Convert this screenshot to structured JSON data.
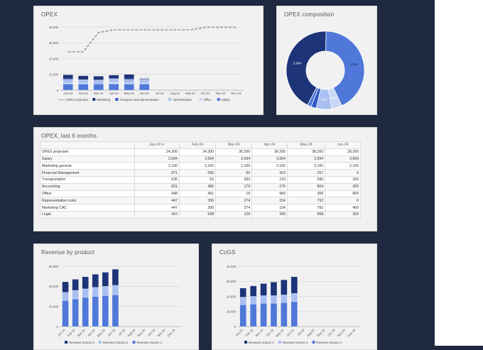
{
  "colors": {
    "background": "#1f2940",
    "card": "#f1f1f1",
    "dark_navy": "#1d3479",
    "royal_blue": "#2e57c4",
    "mid_blue": "#4f78d9",
    "light_blue": "#a9bff1",
    "pale_blue": "#c9d7f7",
    "projection": "#9a9a9a"
  },
  "cards": {
    "opex": {
      "title": "OPEX"
    },
    "composition": {
      "title": "OPEX composition"
    },
    "table": {
      "title": "OPEX, last 6 months"
    },
    "revenue": {
      "title": "Revenue by product"
    },
    "cogs": {
      "title": "CoGS"
    }
  },
  "chart_data": [
    {
      "id": "opex",
      "type": "bar",
      "title": "OPEX",
      "stacked": true,
      "categories": [
        "Jan-24",
        "Feb-24",
        "Mar-24",
        "Apr-24",
        "May-24",
        "Jun-24",
        "Jul-24",
        "Aug-24",
        "Sep-24",
        "Oct-24",
        "Nov-24",
        "Dec-24"
      ],
      "yticks": [
        "0",
        "10,000",
        "20,000",
        "30,000",
        "40,000"
      ],
      "ylim": [
        0,
        40000
      ],
      "grid": true,
      "legend_position": "bottom",
      "series": [
        {
          "name": "Salary",
          "kind": "bar",
          "values": [
            3994,
            3994,
            3994,
            3994,
            3994,
            3994,
            null,
            null,
            null,
            null,
            null,
            null
          ]
        },
        {
          "name": "Office",
          "kind": "bar",
          "values": [
            448,
            491,
            15,
            983,
            358,
            600,
            null,
            null,
            null,
            null,
            null,
            null
          ]
        },
        {
          "name": "Administrative",
          "kind": "bar",
          "values": [
            2100,
            2100,
            2100,
            2100,
            2100,
            2100,
            null,
            null,
            null,
            null,
            null,
            null
          ]
        },
        {
          "name": "Transport and representation",
          "kind": "bar",
          "values": [
            636,
            63,
            392,
            218,
            696,
            200,
            null,
            null,
            null,
            null,
            null,
            null
          ]
        },
        {
          "name": "Marketing",
          "kind": "bar",
          "values": [
            2547,
            2499,
            2374,
            2254,
            2892,
            500,
            null,
            null,
            null,
            null,
            null,
            null
          ]
        },
        {
          "name": "OPEX projected",
          "kind": "line",
          "dashed": true,
          "values": [
            24300,
            24300,
            36500,
            38200,
            38200,
            38200,
            38200,
            38200,
            38200,
            39800,
            39800,
            39800
          ]
        }
      ],
      "legend": [
        "OPEX projected",
        "Marketing",
        "Transport and representation",
        "Administrative",
        "Office",
        "Salary"
      ]
    },
    {
      "id": "composition",
      "type": "pie",
      "donut": true,
      "title": "OPEX composition",
      "slices": [
        {
          "label": "3,994",
          "value": 3994
        },
        {
          "label": "400",
          "value": 400
        },
        {
          "label": "600",
          "value": 600
        },
        {
          "label": "",
          "value": 200
        },
        {
          "label": "",
          "value": 150
        },
        {
          "label": "3,994",
          "value": 3994
        }
      ]
    },
    {
      "id": "table",
      "type": "table",
      "title": "OPEX, last 6 months",
      "columns": [
        "",
        "Jan-24",
        "Feb-24",
        "Mar-24",
        "Apr-24",
        "May-24",
        "Jun-24"
      ],
      "sort_marker": "▼",
      "rows": [
        [
          "OPEX projected",
          "24,300",
          "24,300",
          "36,500",
          "38,200",
          "38,200",
          "38,200"
        ],
        [
          "Salary",
          "3,994",
          "3,994",
          "3,994",
          "3,994",
          "3,994",
          "3,994"
        ],
        [
          "Marketing general",
          "2,100",
          "2,100",
          "2,100",
          "2,100",
          "2,100",
          "2,100"
        ],
        [
          "Financial Management",
          "871",
          "595",
          "50",
          "413",
          "157",
          "0"
        ],
        [
          "Transportation",
          "636",
          "63",
          "392",
          "218",
          "696",
          "200"
        ],
        [
          "Accounting",
          "601",
          "486",
          "179",
          "276",
          "804",
          "300"
        ],
        [
          "Office",
          "448",
          "491",
          "15",
          "983",
          "358",
          "600"
        ],
        [
          "Representative costs",
          "447",
          "399",
          "274",
          "154",
          "792",
          "0"
        ],
        [
          "Marketing CAC",
          "447",
          "399",
          "274",
          "154",
          "792",
          "400"
        ],
        [
          "Legal",
          "410",
          "638",
          "129",
          "300",
          "958",
          "300"
        ]
      ]
    },
    {
      "id": "revenue",
      "type": "bar",
      "title": "Revenue by product",
      "stacked": true,
      "categories": [
        "Jan-24",
        "Feb-24",
        "Mar-24",
        "Apr-24",
        "May-24",
        "Jun-24",
        "Jul-24",
        "Aug-24",
        "Sep-24",
        "Oct-24",
        "Nov-24",
        "Dec-24"
      ],
      "yticks": [
        "0",
        "20,000",
        "40,000",
        "60,000"
      ],
      "ylim": [
        0,
        60000
      ],
      "grid": true,
      "legend_position": "bottom",
      "series": [
        {
          "name": "Revenue Source 1",
          "values": [
            26000,
            27500,
            29000,
            30000,
            31000,
            31500,
            null,
            null,
            null,
            null,
            null,
            null
          ]
        },
        {
          "name": "Revenue Source 2",
          "values": [
            8000,
            8500,
            8500,
            9000,
            9000,
            9500,
            null,
            null,
            null,
            null,
            null,
            null
          ]
        },
        {
          "name": "Revenue Source 3",
          "values": [
            10500,
            11000,
            12000,
            13000,
            14000,
            16000,
            null,
            null,
            null,
            null,
            null,
            null
          ]
        }
      ],
      "legend": [
        "Revenue Source 3",
        "Revenue Source 2",
        "Revenue Source 1"
      ]
    },
    {
      "id": "cogs",
      "type": "bar",
      "title": "CoGS",
      "stacked": true,
      "categories": [
        "Jan-24",
        "Feb-24",
        "Mar-24",
        "Apr-24",
        "May-24",
        "Jun-24",
        "Jul-24",
        "Aug-24",
        "Sep-24",
        "Oct-24",
        "Nov-24",
        "Dec-24"
      ],
      "yticks": [
        "0",
        "10,000",
        "20,000",
        "30,000",
        "40,000"
      ],
      "ylim": [
        0,
        40000
      ],
      "grid": true,
      "legend_position": "bottom",
      "series": [
        {
          "name": "Revenue Source 1",
          "values": [
            14500,
            15000,
            15500,
            15500,
            16000,
            16500,
            null,
            null,
            null,
            null,
            null,
            null
          ]
        },
        {
          "name": "Revenue Source 2",
          "values": [
            5000,
            5000,
            5000,
            5000,
            5000,
            5500,
            null,
            null,
            null,
            null,
            null,
            null
          ]
        },
        {
          "name": "Revenue Source 3",
          "values": [
            6000,
            7000,
            8000,
            9000,
            10000,
            11000,
            null,
            null,
            null,
            null,
            null,
            null
          ]
        }
      ],
      "legend": [
        "Revenue Source 3",
        "Revenue Source 2",
        "Revenue Source 1"
      ]
    }
  ]
}
